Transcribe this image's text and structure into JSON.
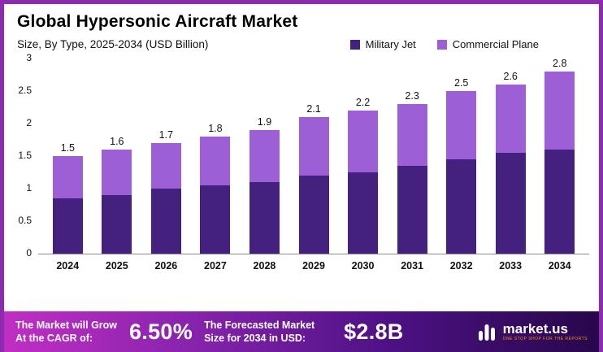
{
  "title": "Global Hypersonic Aircraft Market",
  "subtitle": "Size, By Type, 2025-2034 (USD Billion)",
  "legend": [
    {
      "label": "Military Jet",
      "color": "#44217e"
    },
    {
      "label": "Commercial Plane",
      "color": "#9c5fd6"
    }
  ],
  "chart_data": {
    "type": "bar",
    "stacked": true,
    "title": "Global Hypersonic Aircraft Market Size, By Type, 2025-2034 (USD Billion)",
    "categories": [
      "2024",
      "2025",
      "2026",
      "2027",
      "2028",
      "2029",
      "2030",
      "2031",
      "2032",
      "2033",
      "2034"
    ],
    "series": [
      {
        "name": "Military Jet",
        "color": "#44217e",
        "values": [
          0.85,
          0.9,
          1.0,
          1.05,
          1.1,
          1.2,
          1.25,
          1.35,
          1.45,
          1.55,
          1.6
        ]
      },
      {
        "name": "Commercial Plane",
        "color": "#9c5fd6",
        "values": [
          0.65,
          0.7,
          0.7,
          0.75,
          0.8,
          0.9,
          0.95,
          0.95,
          1.05,
          1.05,
          1.2
        ]
      }
    ],
    "totals": [
      1.5,
      1.6,
      1.7,
      1.8,
      1.9,
      2.1,
      2.2,
      2.3,
      2.5,
      2.6,
      2.8
    ],
    "ylim": [
      0,
      3
    ],
    "yticks": [
      0,
      0.5,
      1,
      1.5,
      2,
      2.5,
      3
    ],
    "grid": false,
    "legend_position": "top-right"
  },
  "banner": {
    "cagr_label": "The Market will Grow At the CAGR of:",
    "cagr_value": "6.50%",
    "forecast_label": "The Forecasted Market Size for 2034 in USD:",
    "forecast_value": "$2.8B",
    "logo_text": "market.us",
    "logo_tagline": "ONE STOP SHOP FOR THE REPORTS"
  },
  "colors": {
    "frame_border": "#8d2bb0",
    "banner_gradient_start": "#c02ec4",
    "banner_gradient_end": "#27074a",
    "tagline_orange": "#f7941d"
  }
}
